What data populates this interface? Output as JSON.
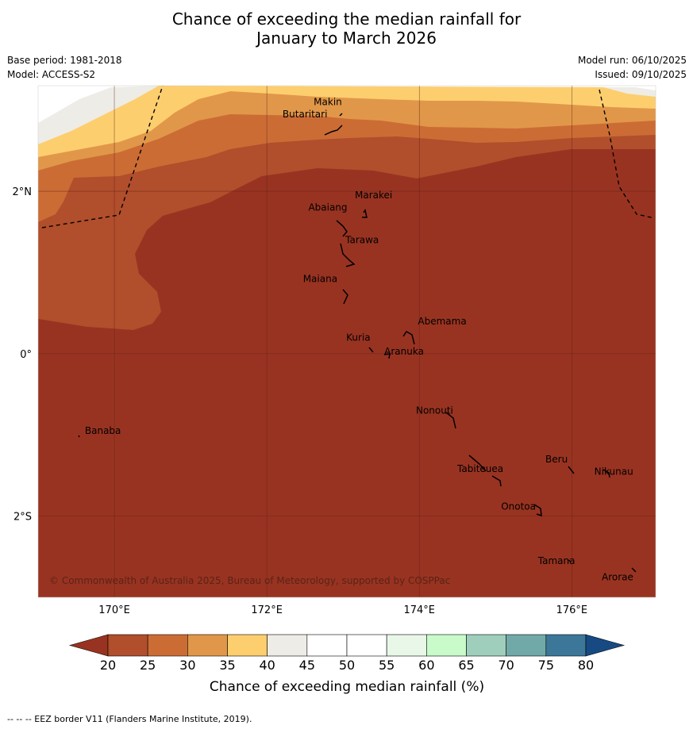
{
  "title_line1": "Chance of exceeding the median rainfall for",
  "title_line2": "January to March 2026",
  "base_period": "Base period: 1981-2018",
  "model": "Model: ACCESS-S2",
  "model_run": "Model run: 06/10/2025",
  "issued": "Issued: 09/10/2025",
  "copyright": "© Commonwealth of Australia 2025, Bureau of Meteorology, supported by COSPPac",
  "footer": "--  --  -- EEZ border V11 (Flanders Marine Institute, 2019).",
  "map": {
    "lon_range": [
      169,
      177.1
    ],
    "lat_range": [
      -3,
      3.3
    ],
    "lat_ticks": [
      "2°N",
      "0°",
      "2°S"
    ],
    "lon_ticks": [
      "170°E",
      "172°E",
      "174°E",
      "176°E"
    ],
    "places": [
      {
        "name": "Makin",
        "lon": 172.8,
        "lat": 3.1
      },
      {
        "name": "Butaritari",
        "lon": 172.5,
        "lat": 2.95
      },
      {
        "name": "Marakei",
        "lon": 173.4,
        "lat": 1.95
      },
      {
        "name": "Abaiang",
        "lon": 172.8,
        "lat": 1.8
      },
      {
        "name": "Tarawa",
        "lon": 173.25,
        "lat": 1.4
      },
      {
        "name": "Maiana",
        "lon": 172.7,
        "lat": 0.92
      },
      {
        "name": "Abemama",
        "lon": 174.3,
        "lat": 0.4
      },
      {
        "name": "Kuria",
        "lon": 173.2,
        "lat": 0.2
      },
      {
        "name": "Aranuka",
        "lon": 173.8,
        "lat": 0.03
      },
      {
        "name": "Nonouti",
        "lon": 174.2,
        "lat": -0.7
      },
      {
        "name": "Banaba",
        "lon": 169.85,
        "lat": -0.95
      },
      {
        "name": "Beru",
        "lon": 175.8,
        "lat": -1.3
      },
      {
        "name": "Tabiteuea",
        "lon": 174.8,
        "lat": -1.42
      },
      {
        "name": "Nikunau",
        "lon": 176.55,
        "lat": -1.45
      },
      {
        "name": "Onotoa",
        "lon": 175.3,
        "lat": -1.88
      },
      {
        "name": "Tamana",
        "lon": 175.8,
        "lat": -2.55
      },
      {
        "name": "Arorae",
        "lon": 176.6,
        "lat": -2.75
      }
    ]
  },
  "legend": {
    "label": "Chance of exceeding median rainfall (%)",
    "ticks": [
      "20",
      "25",
      "30",
      "35",
      "40",
      "45",
      "50",
      "55",
      "60",
      "65",
      "70",
      "75",
      "80"
    ],
    "colors": [
      "#993321",
      "#b14e2c",
      "#cc6c35",
      "#e19749",
      "#fdce6e",
      "#eeece6",
      "#ffffff",
      "#ffffff",
      "#e9f7e9",
      "#c9fbca",
      "#9fcfbc",
      "#71a9a8",
      "#3c7799",
      "#174a83"
    ]
  }
}
